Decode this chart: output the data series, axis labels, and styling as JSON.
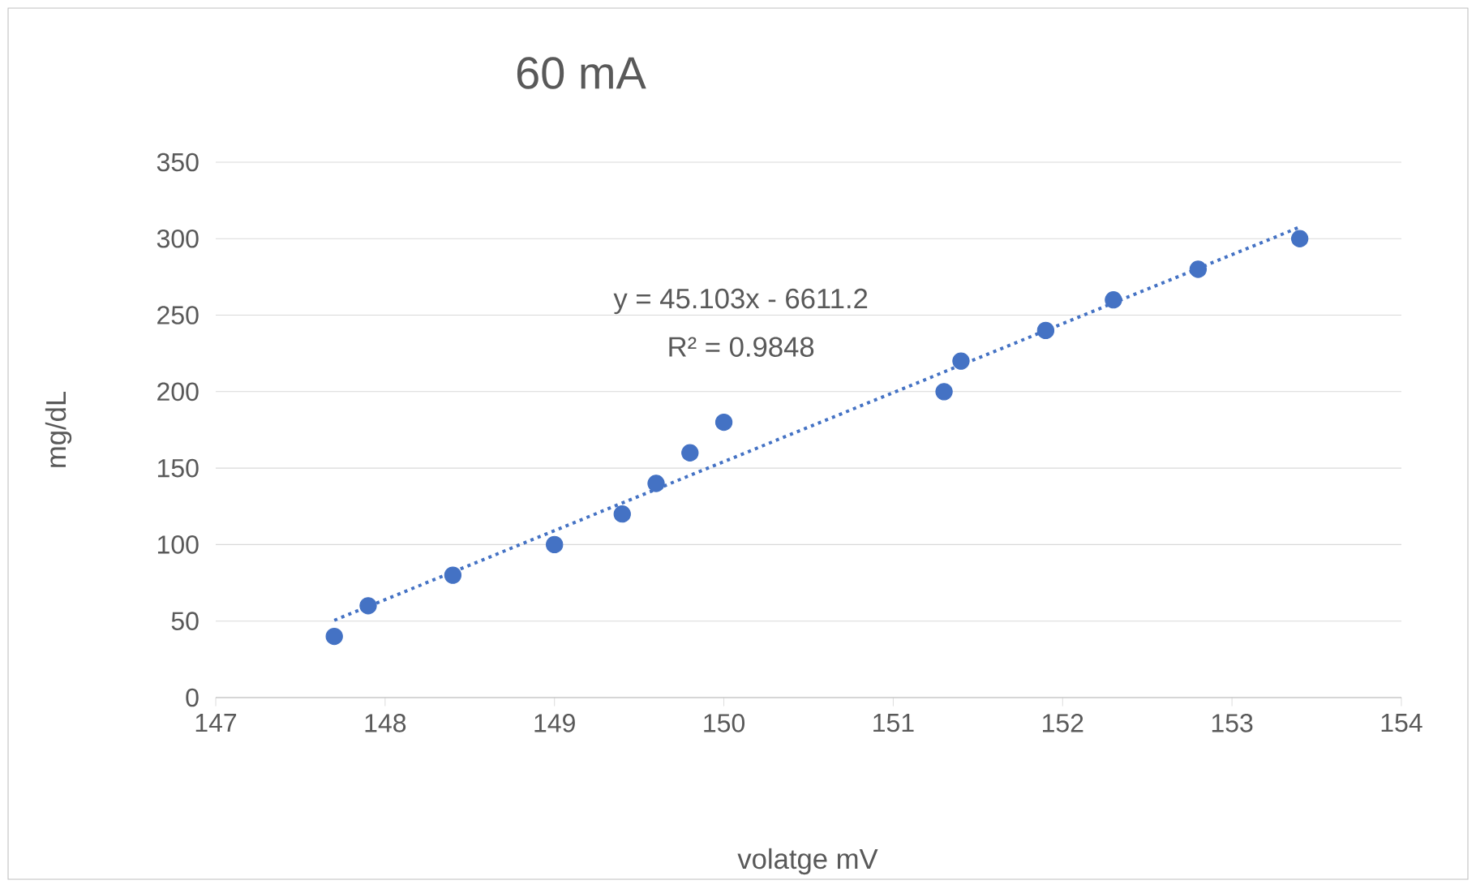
{
  "chart_data": {
    "type": "scatter",
    "title": "60 mA",
    "xlabel": "volatge  mV",
    "ylabel": "mg/dL",
    "annotations": [
      "y = 45.103x - 6611.2",
      "R² = 0.9848"
    ],
    "series": [
      {
        "color": "#4472c4",
        "marker": "circle",
        "x": [
          147.7,
          147.9,
          148.4,
          149.0,
          149.4,
          149.6,
          149.8,
          150.0,
          151.3,
          151.4,
          151.9,
          152.3,
          152.8,
          153.4
        ],
        "values": [
          40,
          60,
          80,
          100,
          120,
          140,
          160,
          180,
          200,
          220,
          240,
          260,
          280,
          300
        ]
      },
      {
        "type": "line",
        "color": "#4472c4",
        "marker": "none",
        "line_style": "dotted",
        "x": [
          147.7,
          153.4
        ],
        "values": [
          50.5,
          307.6
        ]
      }
    ],
    "xlim": [
      147,
      154
    ],
    "xticks": [
      147,
      148,
      149,
      150,
      151,
      152,
      153,
      154
    ],
    "ylim": [
      0,
      350
    ],
    "yticks": [
      0,
      50,
      100,
      150,
      200,
      250,
      300,
      350
    ],
    "grid": "y"
  }
}
